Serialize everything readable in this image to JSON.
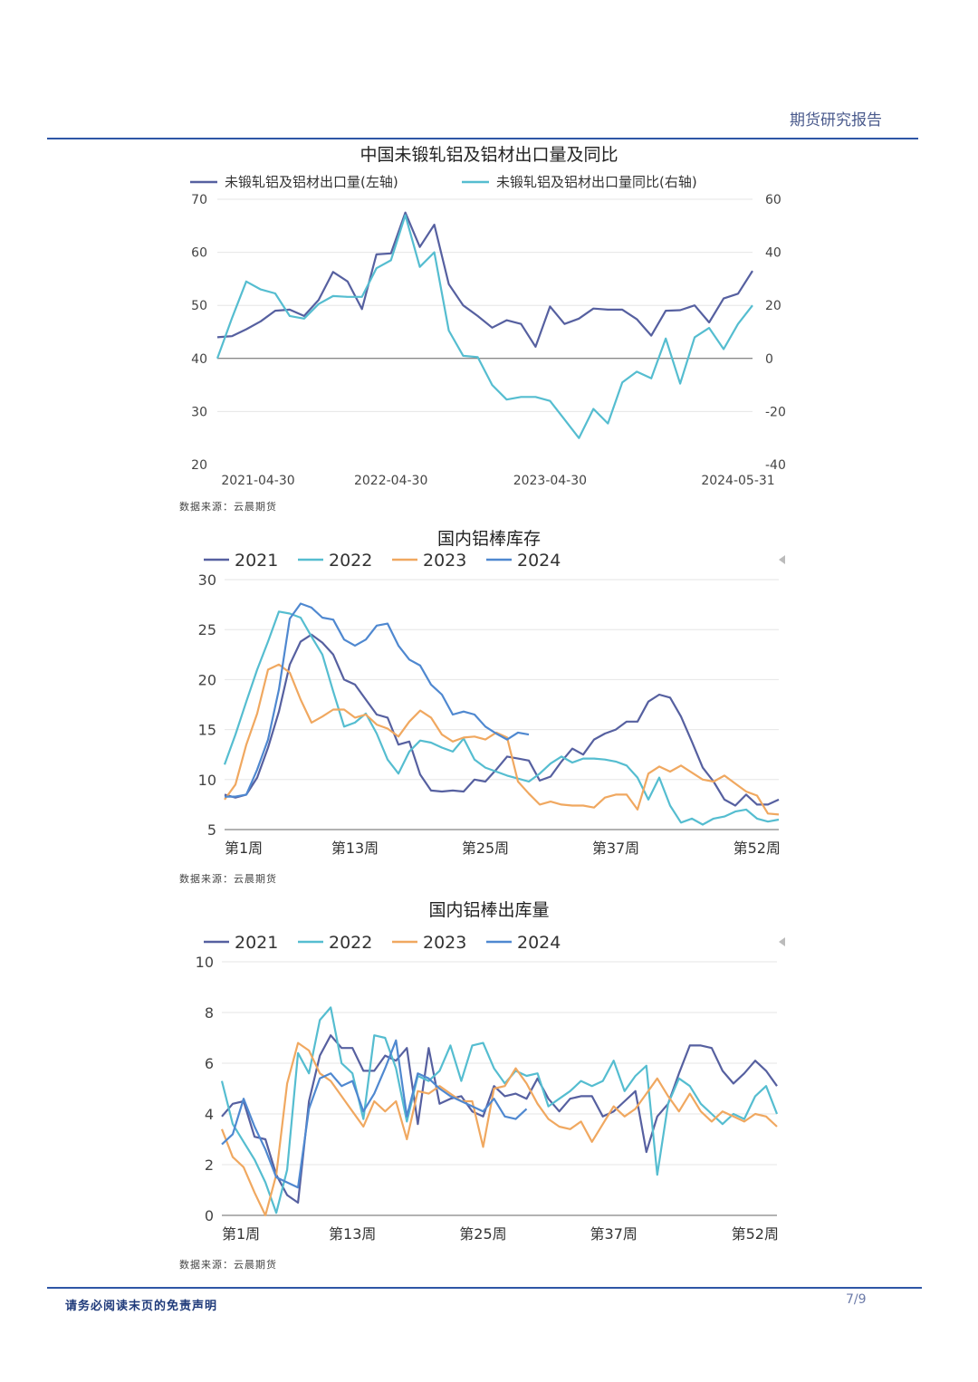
{
  "header": {
    "report_title": "期货研究报告"
  },
  "footer": {
    "disclaimer": "请务必阅读末页的免责声明",
    "page": "7/9"
  },
  "colors": {
    "dark_blue": "#5660a0",
    "teal": "#55bdd0",
    "orange": "#f0a860",
    "blue": "#4f88d0",
    "rule": "#2e56a6"
  },
  "charts": [
    {
      "title": "中国未锻轧铝及铝材出口量及同比",
      "source": "数据来源：云晨期货",
      "chart_data": {
        "type": "line",
        "x_ticks": [
          "2021-04-30",
          "2022-04-30",
          "2023-04-30",
          "2024-05-31"
        ],
        "y_left": {
          "min": 20,
          "max": 70,
          "ticks": [
            "20",
            "30",
            "40",
            "50",
            "60",
            "70"
          ]
        },
        "y_right": {
          "min": -40,
          "max": 60,
          "ticks": [
            "-40",
            "-20",
            "0",
            "20",
            "40",
            "60"
          ]
        },
        "series": [
          {
            "name": "未锻轧铝及铝材出口量(左轴)",
            "axis": "left",
            "color": "#5660a0",
            "values": [
              44,
              44.2,
              45.5,
              47,
              49,
              49.2,
              48,
              51,
              56.3,
              54.5,
              49.3,
              59.6,
              59.8,
              67.5,
              61,
              65.2,
              54,
              50,
              48,
              45.8,
              47.2,
              46.5,
              42.2,
              49.8,
              46.5,
              47.5,
              49.4,
              49.2,
              49.2,
              47.4,
              44.3,
              49,
              49.1,
              50,
              46.8,
              51.3,
              52.2,
              56.5
            ]
          },
          {
            "name": "未锻轧铝及铝材出口量同比(右轴)",
            "axis": "right",
            "color": "#55bdd0",
            "values": [
              0,
              15,
              29,
              26,
              24.5,
              16,
              15,
              20.5,
              23.5,
              23.2,
              23.2,
              34,
              37,
              54,
              34.5,
              40,
              10.5,
              1,
              0.5,
              -10,
              -15.5,
              -14.5,
              -14.5,
              -16,
              -23,
              -30,
              -19,
              -24.5,
              -9,
              -5,
              -7.5,
              7.5,
              -9.5,
              8,
              11.5,
              3.5,
              13,
              20
            ]
          }
        ]
      }
    },
    {
      "title": "国内铝棒库存",
      "source": "数据来源：云晨期货",
      "chart_data": {
        "type": "line",
        "x_ticks": [
          "第1周",
          "第13周",
          "第25周",
          "第37周",
          "第52周"
        ],
        "x_tick_weeks": [
          1,
          13,
          25,
          37,
          52
        ],
        "y": {
          "min": 5,
          "max": 30,
          "ticks": [
            "5",
            "10",
            "15",
            "20",
            "25",
            "30"
          ]
        },
        "series": [
          {
            "name": "2021",
            "color": "#5660a0",
            "values": [
              8.5,
              8.2,
              8.5,
              10.2,
              13.2,
              16.8,
              21.5,
              23.8,
              24.5,
              23.7,
              22.5,
              20,
              19.5,
              18,
              16.5,
              16.2,
              13.5,
              13.8,
              10.5,
              8.9,
              8.8,
              8.9,
              8.8,
              10,
              9.8,
              11,
              12.3,
              12.1,
              11.9,
              9.9,
              10.3,
              11.8,
              13.1,
              12.5,
              14,
              14.6,
              15,
              15.8,
              15.8,
              17.8,
              18.5,
              18.2,
              16.3,
              13.8,
              11.2,
              9.8,
              8,
              7.4,
              8.5,
              7.5,
              7.5,
              8
            ]
          },
          {
            "name": "2022",
            "color": "#55bdd0",
            "values": [
              11.5,
              14.5,
              17.8,
              21,
              23.8,
              26.8,
              26.6,
              26.2,
              24.3,
              22.5,
              18.8,
              15.3,
              15.7,
              16.6,
              14.6,
              12,
              10.6,
              12.8,
              13.9,
              13.7,
              13.2,
              12.8,
              14.1,
              12,
              11.2,
              10.8,
              10.4,
              10.1,
              9.8,
              10.6,
              11.6,
              12.3,
              11.7,
              12.1,
              12.1,
              12,
              11.8,
              11.4,
              10.2,
              8,
              10.2,
              7.4,
              5.7,
              6.1,
              5.5,
              6.1,
              6.3,
              6.8,
              7,
              6.1,
              5.8,
              6
            ]
          },
          {
            "name": "2023",
            "color": "#f0a860",
            "values": [
              8,
              9.5,
              13.5,
              16.6,
              21,
              21.5,
              20.7,
              18,
              15.7,
              16.3,
              17,
              17,
              16.2,
              16.5,
              15.5,
              15.1,
              14.3,
              15.8,
              16.9,
              16.2,
              14.5,
              13.8,
              14.2,
              14.3,
              14,
              14.7,
              14.2,
              9.8,
              8.6,
              7.5,
              7.8,
              7.5,
              7.4,
              7.4,
              7.2,
              8.2,
              8.5,
              8.5,
              7,
              10.6,
              11.3,
              10.8,
              11.4,
              10.7,
              10,
              9.8,
              10.4,
              9.6,
              8.8,
              8.4,
              6.6,
              6.5
            ]
          },
          {
            "name": "2024",
            "color": "#4f88d0",
            "values": [
              8.3,
              8.3,
              8.5,
              11,
              14,
              19,
              26.1,
              27.6,
              27.2,
              26.2,
              26,
              24,
              23.4,
              24,
              25.4,
              25.6,
              23.4,
              22,
              21.4,
              19.5,
              18.5,
              16.5,
              16.8,
              16.5,
              15.3,
              14.6,
              14,
              14.7,
              14.5
            ]
          }
        ]
      }
    },
    {
      "title": "国内铝棒出库量",
      "source": "数据来源：云晨期货",
      "chart_data": {
        "type": "line",
        "x_ticks": [
          "第1周",
          "第13周",
          "第25周",
          "第37周",
          "第52周"
        ],
        "x_tick_weeks": [
          1,
          13,
          25,
          37,
          52
        ],
        "y": {
          "min": 0,
          "max": 10,
          "ticks": [
            "0",
            "2",
            "4",
            "6",
            "8",
            "10"
          ]
        },
        "series": [
          {
            "name": "2021",
            "color": "#5660a0",
            "values": [
              3.9,
              4.4,
              4.5,
              3.1,
              3,
              1.6,
              0.8,
              0.5,
              4.5,
              6.3,
              7.1,
              6.6,
              6.6,
              5.7,
              5.7,
              6.3,
              6.1,
              6.6,
              3.6,
              6.6,
              4.4,
              4.6,
              4.7,
              4.1,
              3.9,
              5.1,
              4.7,
              4.8,
              4.6,
              5.4,
              4.6,
              4.1,
              4.6,
              4.7,
              4.7,
              3.9,
              4.1,
              4.5,
              4.9,
              2.5,
              3.9,
              4.4,
              5.6,
              6.7,
              6.7,
              6.6,
              5.7,
              5.2,
              5.6,
              6.1,
              5.7,
              5.1
            ]
          },
          {
            "name": "2022",
            "color": "#55bdd0",
            "values": [
              5.3,
              3.6,
              2.9,
              2.2,
              1.3,
              0.1,
              1.8,
              6.4,
              5.6,
              7.7,
              8.2,
              6,
              5.6,
              3.8,
              7.1,
              7,
              5.8,
              3.7,
              5.5,
              5.3,
              5.7,
              6.7,
              5.3,
              6.7,
              6.8,
              5.8,
              5.2,
              5.7,
              5.5,
              5.6,
              4.3,
              4.6,
              4.9,
              5.3,
              5.1,
              5.3,
              6.1,
              4.9,
              5.5,
              5.9,
              1.6,
              4.4,
              5.4,
              5.1,
              4.4,
              4,
              3.6,
              4,
              3.8,
              4.7,
              5.1,
              4
            ]
          },
          {
            "name": "2023",
            "color": "#f0a860",
            "values": [
              3.4,
              2.3,
              1.9,
              0.9,
              0,
              1.6,
              5.2,
              6.8,
              6.5,
              5.6,
              5.3,
              4.7,
              4.1,
              3.5,
              4.5,
              4.1,
              4.5,
              3,
              4.9,
              4.8,
              5.1,
              4.8,
              4.5,
              4.5,
              2.7,
              5,
              5.1,
              5.8,
              5.2,
              4.4,
              3.8,
              3.5,
              3.4,
              3.7,
              2.9,
              3.6,
              4.3,
              3.9,
              4.2,
              4.8,
              5.4,
              4.7,
              4.1,
              4.8,
              4.1,
              3.7,
              4.1,
              3.9,
              3.7,
              4,
              3.9,
              3.5
            ]
          },
          {
            "name": "2024",
            "color": "#4f88d0",
            "values": [
              2.8,
              3.2,
              4.6,
              3.5,
              2.6,
              1.5,
              1.3,
              1.1,
              4.2,
              5.4,
              5.6,
              5.1,
              5.3,
              4.1,
              4.8,
              5.8,
              6.9,
              3.9,
              5.6,
              5.4,
              5,
              4.7,
              4.5,
              4.3,
              4.1,
              4.6,
              3.9,
              3.8,
              4.2
            ]
          }
        ]
      }
    }
  ]
}
